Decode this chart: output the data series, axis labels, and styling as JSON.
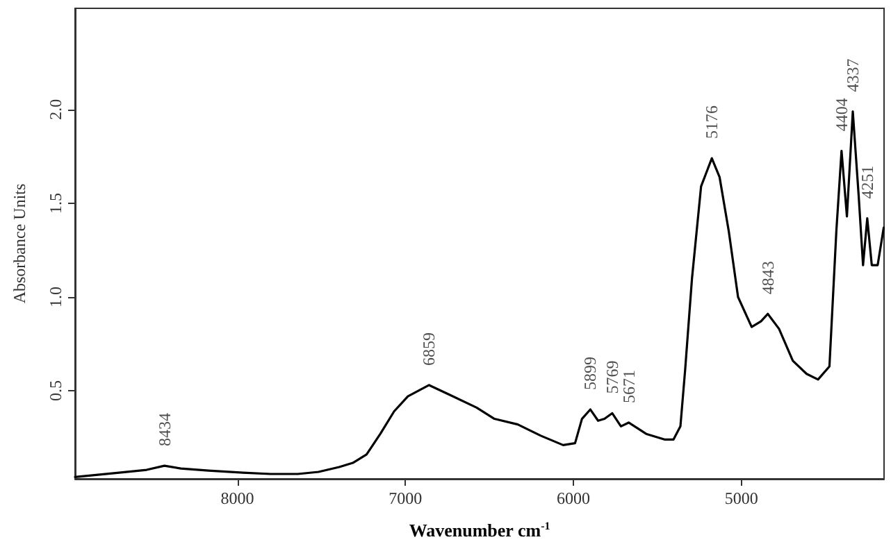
{
  "chart_data": {
    "type": "line",
    "xlabel": "Wavenumber cm$^{-1}$",
    "ylabel": "Absorbance Units",
    "xlim": [
      8966,
      4151
    ],
    "xticks": [
      8000,
      7000,
      6000,
      5000
    ],
    "ylim": [
      0.03,
      2.54
    ],
    "yticks": [
      0.5,
      {
        "value": 1.0,
        "label": "1.0"
      },
      1.5,
      {
        "value": 2.0,
        "label": "2.0"
      }
    ],
    "grid": false,
    "marker": "none",
    "line_style": "solid",
    "series": [
      {
        "color": "#000000",
        "x": [
          8966,
          8704,
          8540,
          8434,
          8336,
          8172,
          7967,
          7804,
          7640,
          7517,
          7394,
          7313,
          7231,
          7149,
          7067,
          6985,
          6859,
          6740,
          6576,
          6470,
          6331,
          6194,
          6061,
          5990,
          5949,
          5899,
          5853,
          5815,
          5769,
          5717,
          5671,
          5567,
          5458,
          5404,
          5363,
          5335,
          5294,
          5240,
          5176,
          5130,
          5075,
          5020,
          4939,
          4884,
          4843,
          4776,
          4694,
          4612,
          4544,
          4476,
          4435,
          4404,
          4372,
          4337,
          4302,
          4276,
          4251,
          4224,
          4189,
          4153
        ],
        "values": [
          0.04,
          0.063,
          0.078,
          0.1,
          0.085,
          0.074,
          0.063,
          0.056,
          0.056,
          0.067,
          0.093,
          0.115,
          0.16,
          0.27,
          0.39,
          0.47,
          0.53,
          0.48,
          0.41,
          0.35,
          0.32,
          0.26,
          0.21,
          0.22,
          0.35,
          0.4,
          0.34,
          0.35,
          0.38,
          0.31,
          0.33,
          0.27,
          0.24,
          0.24,
          0.31,
          0.61,
          1.1,
          1.59,
          1.74,
          1.64,
          1.35,
          1.0,
          0.84,
          0.87,
          0.91,
          0.83,
          0.66,
          0.59,
          0.56,
          0.63,
          1.35,
          1.78,
          1.43,
          1.99,
          1.54,
          1.17,
          1.42,
          1.17,
          1.17,
          1.37
        ]
      }
    ],
    "annotations": [
      {
        "text": "8434",
        "x": 8434,
        "y": 0.1
      },
      {
        "text": "6859",
        "x": 6859,
        "y": 0.53
      },
      {
        "text": "5899",
        "x": 5899,
        "y": 0.4
      },
      {
        "text": "5769",
        "x": 5769,
        "y": 0.38
      },
      {
        "text": "5671",
        "x": 5671,
        "y": 0.33
      },
      {
        "text": "5176",
        "x": 5176,
        "y": 1.74
      },
      {
        "text": "4843",
        "x": 4843,
        "y": 0.91
      },
      {
        "text": "4404",
        "x": 4404,
        "y": 1.78
      },
      {
        "text": "4337",
        "x": 4337,
        "y": 1.99
      },
      {
        "text": "4251",
        "x": 4251,
        "y": 1.42
      }
    ]
  }
}
